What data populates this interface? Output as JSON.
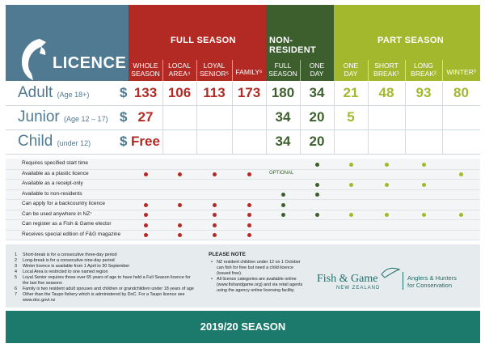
{
  "header": {
    "title": "LICENCE",
    "groups": [
      {
        "name": "FULL SEASON",
        "color": "#b32a25"
      },
      {
        "name": "NON-RESIDENT",
        "color": "#3d5f2e"
      },
      {
        "name": "PART SEASON",
        "color": "#a4b82e"
      }
    ],
    "columns": [
      {
        "line1": "WHOLE",
        "line2": "SEASON"
      },
      {
        "line1": "LOCAL",
        "line2": "AREA⁴"
      },
      {
        "line1": "LOYAL",
        "line2": "SENIOR⁵"
      },
      {
        "line1": "FAMILY⁶",
        "line2": ""
      },
      {
        "line1": "FULL",
        "line2": "SEASON"
      },
      {
        "line1": "ONE",
        "line2": "DAY"
      },
      {
        "line1": "ONE",
        "line2": "DAY"
      },
      {
        "line1": "SHORT",
        "line2": "BREAK¹"
      },
      {
        "line1": "LONG",
        "line2": "BREAK²"
      },
      {
        "line1": "WINTER³",
        "line2": ""
      }
    ]
  },
  "prices": [
    {
      "name": "Adult",
      "age": "(Age 18+)",
      "currency": "$",
      "values": [
        "133",
        "106",
        "113",
        "173",
        "180",
        "34",
        "21",
        "48",
        "93",
        "80"
      ]
    },
    {
      "name": "Junior",
      "age": "(Age 12 – 17)",
      "currency": "$",
      "values": [
        "27",
        "",
        "",
        "",
        "34",
        "20",
        "5",
        "",
        "",
        ""
      ]
    },
    {
      "name": "Child",
      "age": "(under 12)",
      "currency": "$",
      "values": [
        "Free",
        "",
        "",
        "",
        "34",
        "20",
        "",
        "",
        "",
        ""
      ]
    }
  ],
  "features": [
    {
      "label": "Requires specified start time",
      "dots": [
        0,
        0,
        0,
        0,
        0,
        1,
        1,
        1,
        1,
        0
      ]
    },
    {
      "label": "Available as a plastic licence",
      "dots": [
        1,
        1,
        1,
        1,
        0,
        0,
        0,
        0,
        0,
        1
      ],
      "optional": "OPTIONAL"
    },
    {
      "label": "Available as a receipt-only",
      "dots": [
        0,
        0,
        0,
        0,
        0,
        1,
        1,
        1,
        1,
        0
      ]
    },
    {
      "label": "Available to non-residents",
      "dots": [
        0,
        0,
        0,
        0,
        1,
        1,
        0,
        0,
        0,
        0
      ]
    },
    {
      "label": "Can apply for a backcountry licence",
      "dots": [
        1,
        1,
        1,
        1,
        1,
        0,
        0,
        0,
        0,
        0
      ]
    },
    {
      "label": "Can be used anywhere in NZ⁷",
      "dots": [
        1,
        0,
        1,
        1,
        1,
        1,
        1,
        1,
        1,
        1
      ]
    },
    {
      "label": "Can register as a Fish & Game elector",
      "dots": [
        1,
        1,
        1,
        1,
        0,
        0,
        0,
        0,
        0,
        0
      ]
    },
    {
      "label": "Receives special edition of F&G magazine",
      "dots": [
        1,
        1,
        1,
        1,
        0,
        0,
        0,
        0,
        0,
        0
      ]
    }
  ],
  "footnotes": [
    {
      "num": "1",
      "text": "Short-break is for a consecutive three-day period"
    },
    {
      "num": "2",
      "text": "Long-break is for a consecutive nine-day period"
    },
    {
      "num": "3",
      "text": "Winter licence is available from 1 April to 30 September"
    },
    {
      "num": "4",
      "text": "Local Area is restricted to one named region"
    },
    {
      "num": "5",
      "text": "Loyal Senior requires those over 65 years of age to have held a Full Season licence for"
    },
    {
      "num": "",
      "text": "the last five seasons"
    },
    {
      "num": "6",
      "text": "Family is two resident adult spouses and children or grandchildren under 18 years of age"
    },
    {
      "num": "7",
      "text": "Other than the Taupo fishery which is administered by DoC.  For a Taupo licence see"
    },
    {
      "num": "",
      "text": "www.doc.govt.nz"
    }
  ],
  "please_note": {
    "title": "PLEASE NOTE",
    "items": [
      "NZ resident children under 12 on 1 October can fish for free but need a child licence (issued free).",
      "All licence categories are available online (www.fishandgame.org) and via retail agents using the agency online licensing facility."
    ]
  },
  "brand": {
    "name": "Fish & Game",
    "sub": "NEW ZEALAND",
    "tagline_1": "Anglers & Hunters",
    "tagline_2": "for Conservation"
  },
  "season": "2019/20 SEASON",
  "colors": {
    "blue": "#4f7a92",
    "red": "#b32a25",
    "green": "#3d5f2e",
    "lime": "#a4b82e",
    "teal": "#1c7a6c"
  }
}
